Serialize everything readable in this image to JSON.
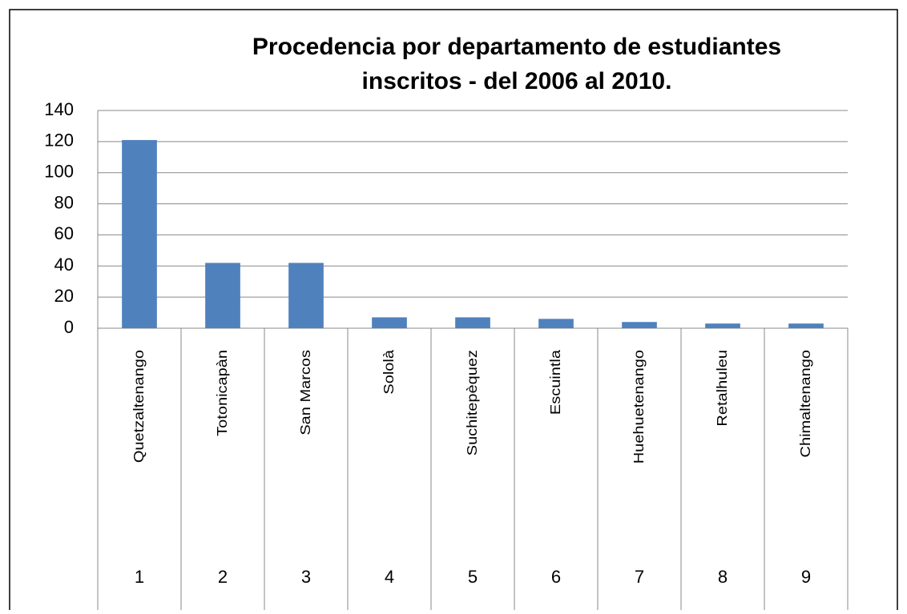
{
  "chart_data": {
    "type": "bar",
    "title": [
      "Procedencia por departamento de estudiantes",
      "inscritos - del 2006 al 2010."
    ],
    "categories": [
      "Quetzaltenango",
      "Totonicapàn",
      "San Marcos",
      "Sololà",
      "Suchitepèquez",
      "Escuintla",
      "Huehuetenango",
      "Retalhuleu",
      "Chimaltenango"
    ],
    "category_numbers": [
      1,
      2,
      3,
      4,
      5,
      6,
      7,
      8,
      9
    ],
    "values": [
      121,
      42,
      42,
      7,
      7,
      6,
      4,
      3,
      3
    ],
    "color": "#4f81bd",
    "ylim": [
      0,
      140
    ],
    "yticks": [
      0,
      20,
      40,
      60,
      80,
      100,
      120,
      140
    ],
    "grid": true
  }
}
